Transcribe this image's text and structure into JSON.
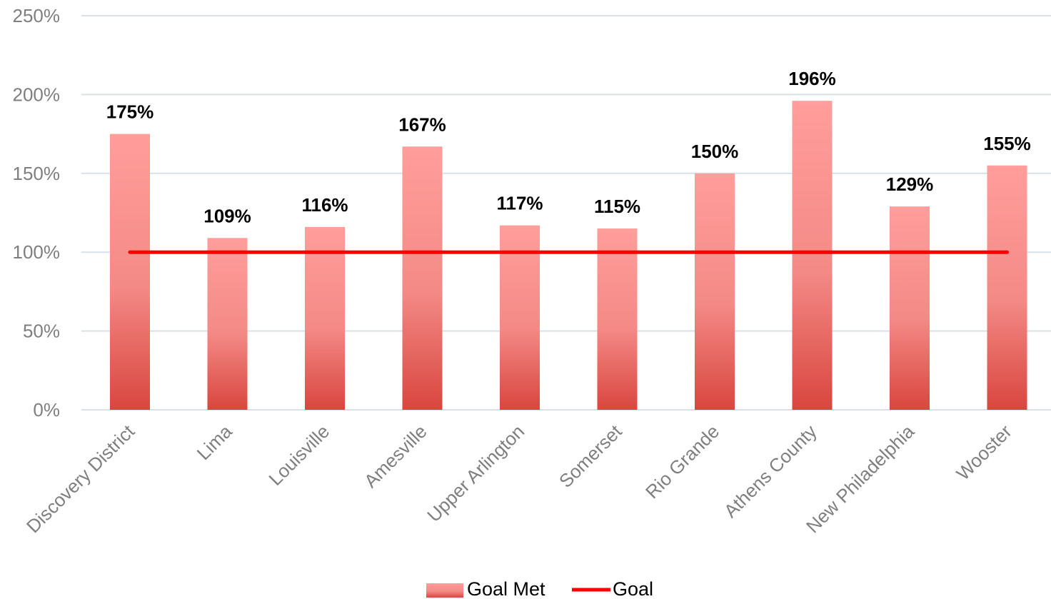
{
  "chart_data": {
    "type": "bar",
    "categories": [
      "Discovery District",
      "Lima",
      "Louisville",
      "Amesville",
      "Upper Arlington",
      "Somerset",
      "Rio Grande",
      "Athens County",
      "New Philadelphia",
      "Wooster"
    ],
    "series": [
      {
        "name": "Goal Met",
        "type": "bar",
        "values": [
          175,
          109,
          116,
          167,
          117,
          115,
          150,
          196,
          129,
          155
        ],
        "labels": [
          "175%",
          "109%",
          "116%",
          "167%",
          "117%",
          "115%",
          "150%",
          "196%",
          "129%",
          "155%"
        ]
      },
      {
        "name": "Goal",
        "type": "line",
        "values": [
          100,
          100,
          100,
          100,
          100,
          100,
          100,
          100,
          100,
          100
        ]
      }
    ],
    "ylim": [
      0,
      250
    ],
    "yticks": [
      "0%",
      "50%",
      "100%",
      "150%",
      "200%",
      "250%"
    ],
    "grid": true,
    "legend_position": "bottom",
    "colors": {
      "bar_top": "#ff9e9b",
      "bar_bottom": "#d9463f",
      "goal_line": "#ff0000",
      "grid": "#d6e1ea",
      "axis_text": "#7f7f7f"
    }
  }
}
